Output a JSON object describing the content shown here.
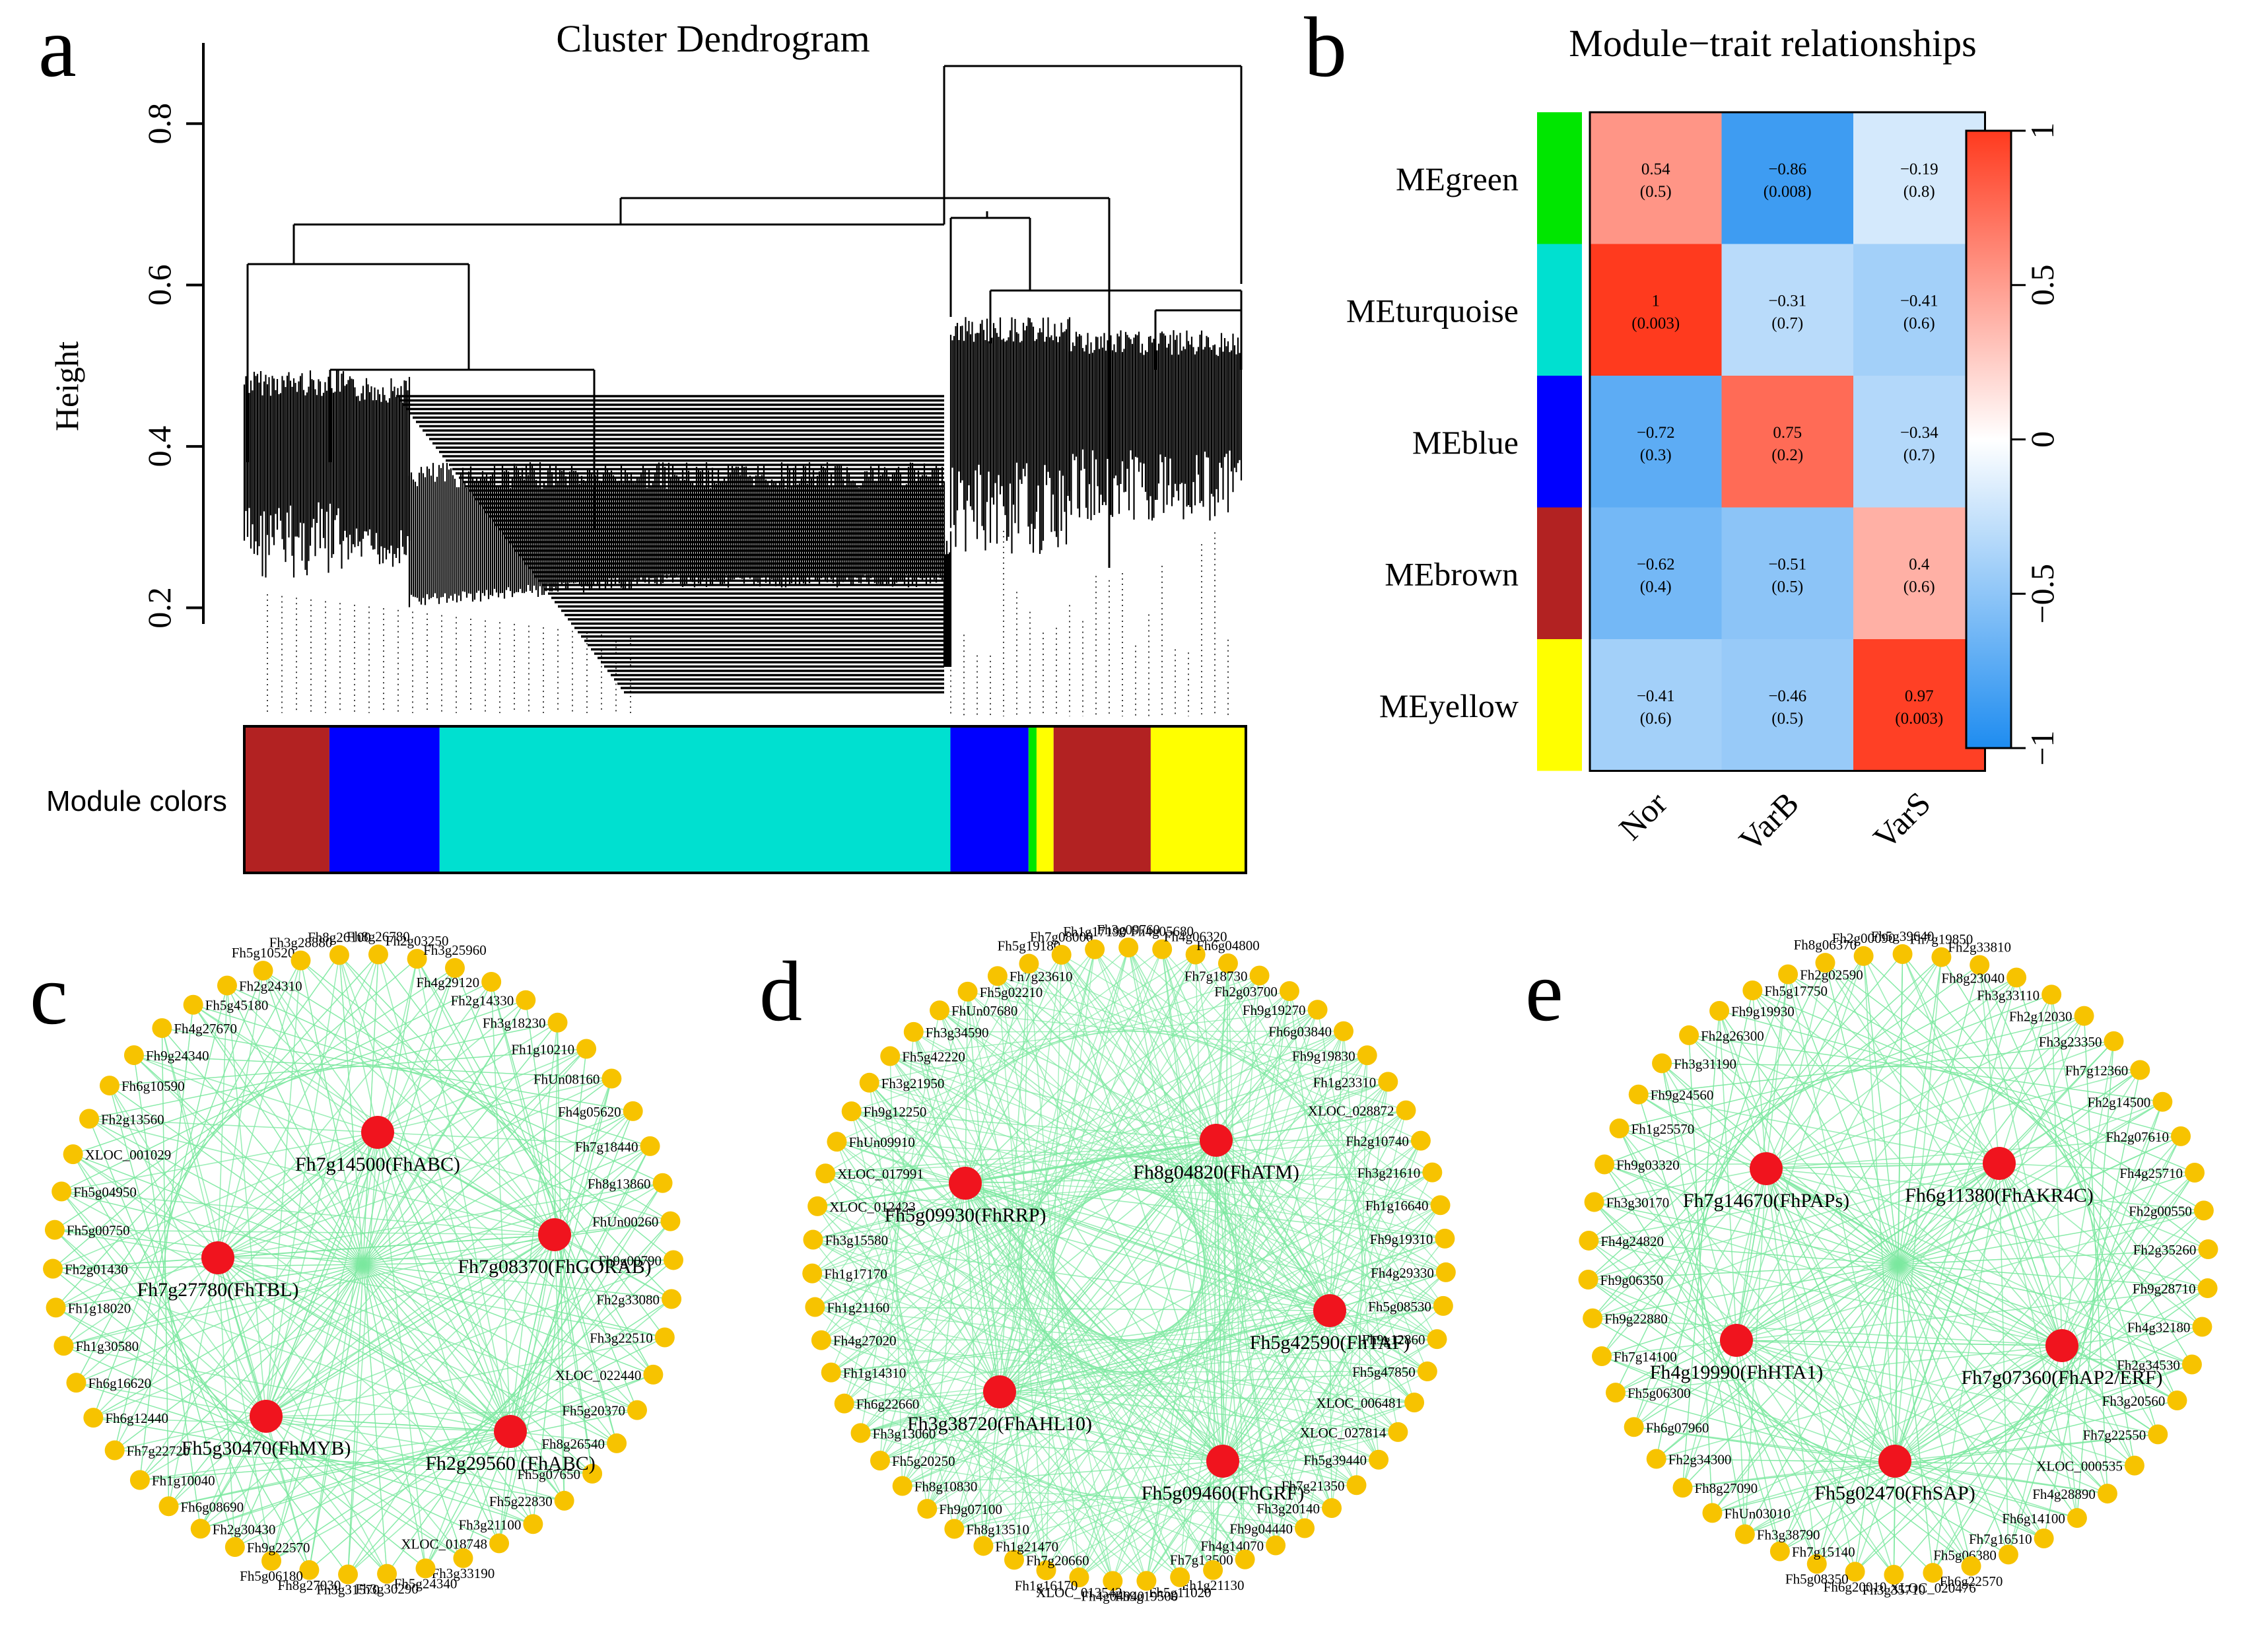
{
  "panels": {
    "a": {
      "letter": "a",
      "title": "Cluster Dendrogram",
      "ylabel": "Height",
      "yticks": [
        "0.2",
        "0.4",
        "0.6",
        "0.8"
      ],
      "module_label": "Module colors",
      "module_segments": [
        {
          "color": "brown",
          "hex": "#B22222",
          "start": 0.0,
          "end": 0.085
        },
        {
          "color": "blue",
          "hex": "#0000FF",
          "start": 0.085,
          "end": 0.195
        },
        {
          "color": "turquoise",
          "hex": "#00E0D0",
          "start": 0.195,
          "end": 0.705
        },
        {
          "color": "blue",
          "hex": "#0000FF",
          "start": 0.705,
          "end": 0.783
        },
        {
          "color": "green",
          "hex": "#00E600",
          "start": 0.783,
          "end": 0.791
        },
        {
          "color": "yellow",
          "hex": "#FFFF00",
          "start": 0.791,
          "end": 0.808
        },
        {
          "color": "brown",
          "hex": "#B22222",
          "start": 0.808,
          "end": 0.905
        },
        {
          "color": "yellow",
          "hex": "#FFFF00",
          "start": 0.905,
          "end": 1.0
        }
      ]
    },
    "b": {
      "letter": "b",
      "title": "Module−trait relationships"
    },
    "c": {
      "letter": "c",
      "hubs": [
        "Fh7g14500(FhABC)",
        "Fh7g27780(FhTBL)",
        "Fh7g08370(FhGORAB)",
        "Fh5g30470(FhMYB)",
        "Fh2g29560 (FhABC)"
      ],
      "nodes": [
        "Fh2g03250",
        "Fh3g25960",
        "Fh4g29120",
        "Fh2g14330",
        "Fh3g18230",
        "Fh1g10210",
        "FhUn08160",
        "Fh4g05620",
        "Fh7g18440",
        "Fh8g13860",
        "FhUn00260",
        "Fh9g00790",
        "Fh2g33080",
        "Fh3g22510",
        "XLOC_022440",
        "Fh5g20370",
        "Fh8g26540",
        "Fh5g07650",
        "Fh5g22830",
        "Fh3g21100",
        "XLOC_018748",
        "Fh3g33190",
        "Fh5g24340",
        "Fh3g30290",
        "Fh3g31570",
        "Fh8g27030",
        "Fh5g06180",
        "Fh9g22570",
        "Fh2g30430",
        "Fh6g08690",
        "Fh1g10040",
        "Fh7g22720",
        "Fh6g12440",
        "Fh6g16620",
        "Fh1g30580",
        "Fh1g18020",
        "Fh2g01430",
        "Fh5g00750",
        "Fh5g04950",
        "XLOC_001029",
        "Fh2g13560",
        "Fh6g10590",
        "Fh9g24340",
        "Fh4g27670",
        "Fh5g45180",
        "Fh2g24310",
        "Fh5g10520",
        "Fh3g28880",
        "Fh8g26100",
        "Fh8g26780"
      ]
    },
    "d": {
      "letter": "d",
      "hubs": [
        "Fh8g04820(FhATM)",
        "Fh5g09930(FhRRP)",
        "Fh5g42590(FhTAF)",
        "Fh3g38720(FhAHL10)",
        "Fh5g09460(FhGRF)"
      ],
      "nodes": [
        "Fh4g05680",
        "Fh4g06320",
        "Fh6g04800",
        "Fh7g18730",
        "Fh2g03700",
        "Fh9g19270",
        "Fh6g03840",
        "Fh9g19830",
        "Fh1g23310",
        "XLOC_028872",
        "Fh2g10740",
        "Fh3g21610",
        "Fh1g16640",
        "Fh9g19310",
        "Fh4g29330",
        "Fh5g08530",
        "Fh9g12860",
        "Fh5g47850",
        "XLOC_006481",
        "XLOC_027814",
        "Fh5g39440",
        "Fh7g21350",
        "Fh3g20140",
        "Fh9g04440",
        "Fh4g14070",
        "Fh7g13500",
        "Fh1g21130",
        "Fh5g11020",
        "Fh9g19500",
        "Fh4g04940",
        "XLOC_013542",
        "Fh1g16170",
        "Fh7g20660",
        "Fh1g21470",
        "Fh8g13510",
        "Fh9g07100",
        "Fh8g10830",
        "Fh5g20250",
        "Fh3g13060",
        "Fh6g22660",
        "Fh1g14310",
        "Fh4g27020",
        "Fh1g21160",
        "Fh1g17170",
        "Fh3g15580",
        "XLOC_012423",
        "XLOC_017991",
        "FhUn09910",
        "Fh9g12250",
        "Fh3g21950",
        "Fh5g42220",
        "Fh3g34590",
        "FhUn07680",
        "Fh5g02210",
        "Fh7g23610",
        "Fh5g19180",
        "Fh7g08000",
        "Fh1g17190",
        "Fh3g09760"
      ]
    },
    "e": {
      "letter": "e",
      "hubs": [
        "Fh7g14670(FhPAPs)",
        "Fh6g11380(FhAKR4C)",
        "Fh4g19990(FhHTA1)",
        "Fh7g07360(FhAP2/ERF)",
        "Fh5g02470(FhSAP)"
      ],
      "nodes": [
        "Fh7g19850",
        "Fh2g33810",
        "Fh8g23040",
        "Fh3g33110",
        "Fh2g12030",
        "Fh3g23350",
        "Fh7g12360",
        "Fh2g14500",
        "Fh2g07610",
        "Fh4g25710",
        "Fh2g00550",
        "Fh2g35260",
        "Fh9g28710",
        "Fh4g32180",
        "Fh2g34530",
        "Fh3g20560",
        "Fh7g22550",
        "XLOC_000535",
        "Fh4g28890",
        "Fh6g14100",
        "Fh7g16510",
        "Fh5g06380",
        "Fh6g22570",
        "XLOC_020476",
        "Fh3g35710",
        "Fh6g20010",
        "Fh5g08350",
        "Fh7g15140",
        "Fh3g38790",
        "FhUn03010",
        "Fh8g27090",
        "Fh2g34300",
        "Fh6g07960",
        "Fh5g06300",
        "Fh7g14100",
        "Fh9g22880",
        "Fh9g06350",
        "Fh4g24820",
        "Fh3g30170",
        "Fh9g03320",
        "Fh1g25570",
        "Fh9g24560",
        "Fh3g31190",
        "Fh2g26300",
        "Fh9g19930",
        "Fh5g17750",
        "Fh2g02590",
        "Fh8g06370",
        "Fh2g00090",
        "Fh5g39640"
      ]
    }
  },
  "chart_data": [
    {
      "type": "dendrogram",
      "title": "Cluster Dendrogram",
      "ylabel": "Height",
      "ylim": [
        0.18,
        0.9
      ],
      "yticks": [
        0.2,
        0.4,
        0.6,
        0.8
      ],
      "module_colors": [
        "brown",
        "blue",
        "turquoise",
        "blue",
        "green",
        "yellow",
        "brown",
        "yellow"
      ]
    },
    {
      "type": "heatmap",
      "title": "Module−trait relationships",
      "rows": [
        "MEgreen",
        "MEturquoise",
        "MEblue",
        "MEbrown",
        "MEyellow"
      ],
      "row_colors": [
        "#00E600",
        "#00E0D0",
        "#0000FF",
        "#B22222",
        "#FFFF00"
      ],
      "columns": [
        "Nor",
        "VarB",
        "VarS"
      ],
      "values": [
        [
          0.54,
          -0.86,
          -0.19
        ],
        [
          1,
          -0.31,
          -0.41
        ],
        [
          -0.72,
          0.75,
          -0.34
        ],
        [
          -0.62,
          -0.51,
          0.4
        ],
        [
          -0.41,
          -0.46,
          0.97
        ]
      ],
      "pvalues": [
        [
          "(0.5)",
          "(0.008)",
          "(0.8)"
        ],
        [
          "(0.003)",
          "(0.7)",
          "(0.6)"
        ],
        [
          "(0.3)",
          "(0.2)",
          "(0.7)"
        ],
        [
          "(0.4)",
          "(0.5)",
          "(0.6)"
        ],
        [
          "(0.6)",
          "(0.5)",
          "(0.003)"
        ]
      ],
      "value_labels": [
        [
          "0.54",
          "−0.86",
          "−0.19"
        ],
        [
          "1",
          "−0.31",
          "−0.41"
        ],
        [
          "−0.72",
          "0.75",
          "−0.34"
        ],
        [
          "−0.62",
          "−0.51",
          "0.4"
        ],
        [
          "−0.41",
          "−0.46",
          "0.97"
        ]
      ],
      "colorbar": {
        "range": [
          -1,
          1
        ],
        "ticks": [
          "1",
          "0.5",
          "0",
          "−0.5",
          "−1"
        ]
      }
    }
  ],
  "colors": {
    "hub": "#F0141E",
    "node": "#F7C300",
    "edge": "#7CE8A0",
    "neg": "#1E8CF0",
    "pos": "#FF3A1E"
  }
}
